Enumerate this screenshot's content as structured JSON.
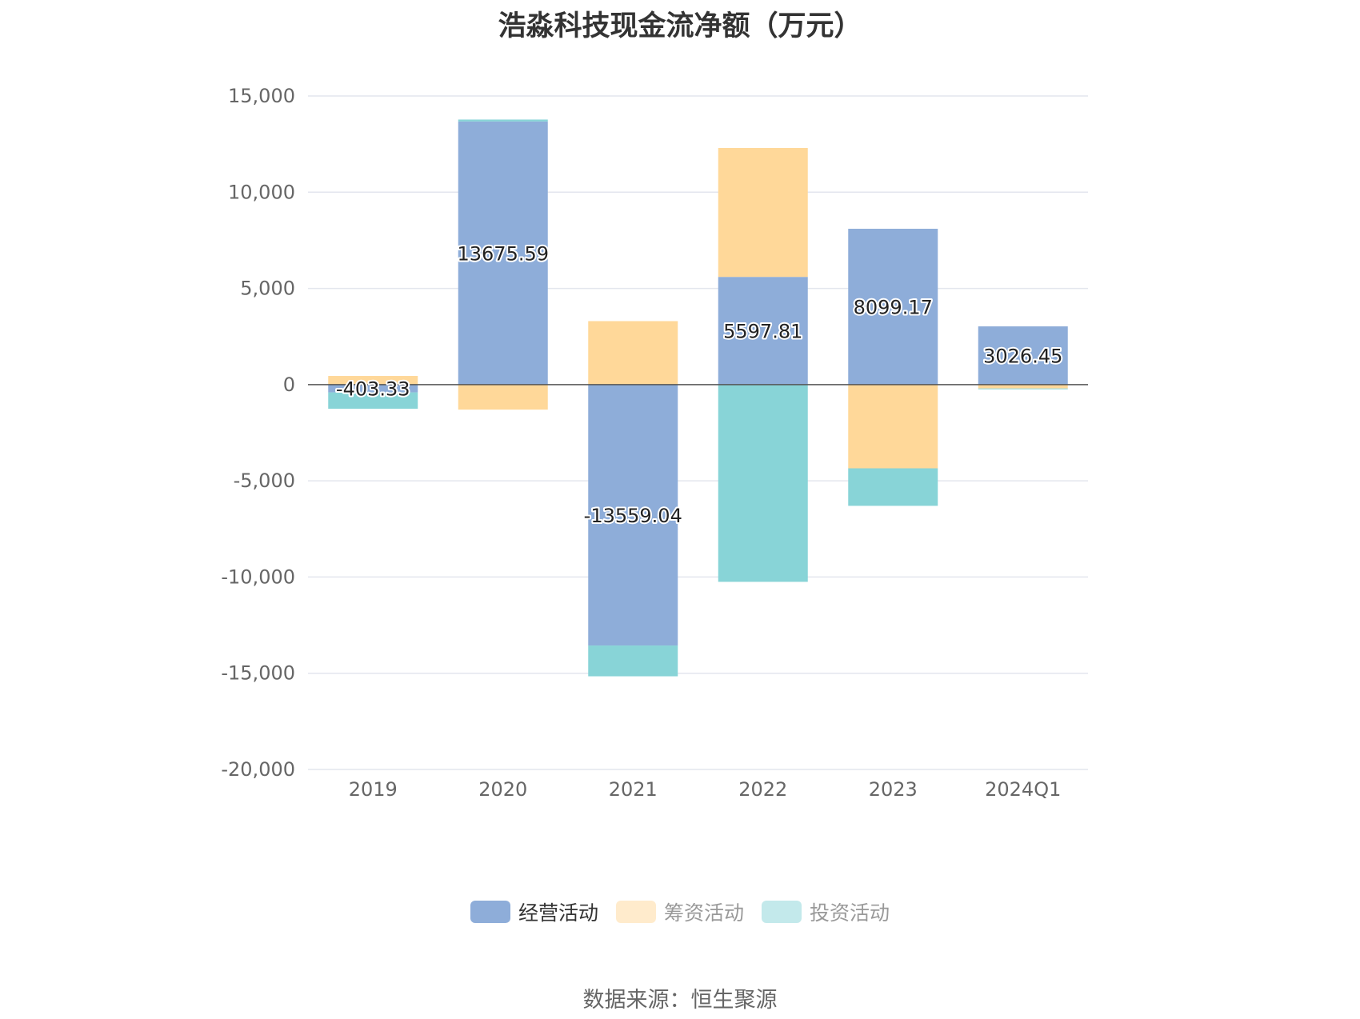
{
  "title": "浩淼科技现金流净额（万元）",
  "source": "数据来源：恒生聚源",
  "colors": {
    "operating": "#8eadd9",
    "financing": "#ffd899",
    "investing": "#88d4d7",
    "grid": "#e3e6ee",
    "axis": "#555555"
  },
  "chart_data": {
    "type": "bar",
    "stacked": true,
    "title": "浩淼科技现金流净额（万元）",
    "categories": [
      "2019",
      "2020",
      "2021",
      "2022",
      "2023",
      "2024Q1"
    ],
    "ylim": [
      -20000,
      15000
    ],
    "yticks": [
      15000,
      10000,
      5000,
      0,
      -5000,
      -10000,
      -15000,
      -20000
    ],
    "ytick_labels": [
      "15,000",
      "10,000",
      "5,000",
      "0",
      "-5,000",
      "-10,000",
      "-15,000",
      "-20,000"
    ],
    "grid": true,
    "legend_position": "bottom",
    "series": [
      {
        "name": "经营活动",
        "key": "operating",
        "values": [
          -403.33,
          13675.59,
          -13559.04,
          5597.81,
          8099.17,
          3026.45
        ],
        "labels": [
          "-403.33",
          "13675.59",
          "-13559.04",
          "5597.81",
          "8099.17",
          "3026.45"
        ]
      },
      {
        "name": "筹资活动",
        "key": "financing",
        "values": [
          450,
          -1300,
          3300,
          6700,
          -4350,
          -200
        ]
      },
      {
        "name": "投资活动",
        "key": "investing",
        "values": [
          -850,
          100,
          -1600,
          -10250,
          -1950,
          -20
        ]
      }
    ]
  }
}
